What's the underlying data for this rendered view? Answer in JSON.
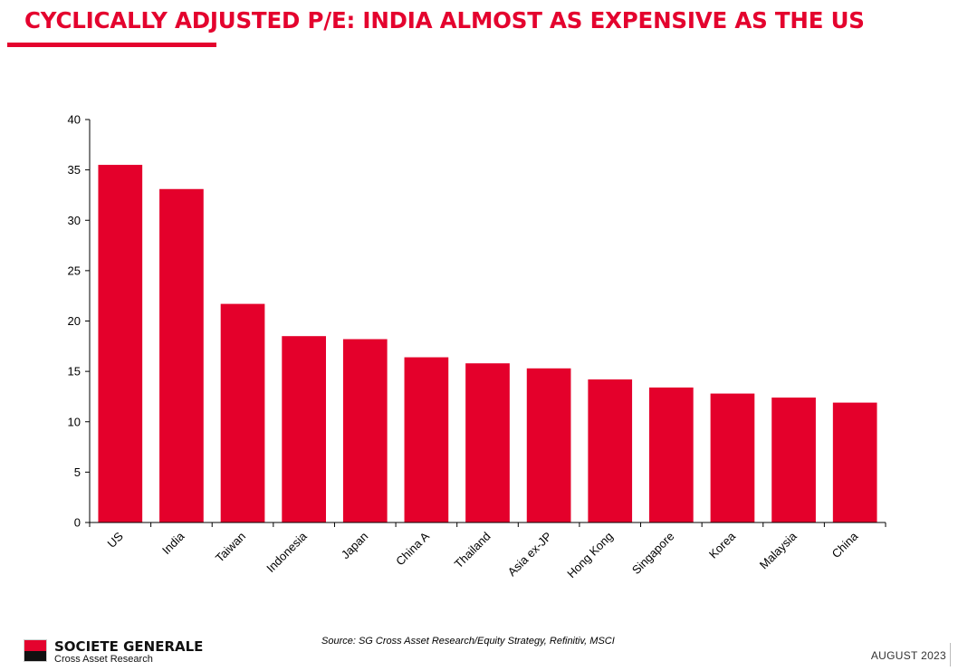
{
  "header": {
    "title": "CYCLICALLY ADJUSTED P/E: INDIA ALMOST AS EXPENSIVE AS THE US"
  },
  "colors": {
    "accent": "#e4032e",
    "bar": "#e4002b",
    "axis": "#000000"
  },
  "chart_data": {
    "type": "bar",
    "categories": [
      "US",
      "India",
      "Taiwan",
      "Indonesia",
      "Japan",
      "China A",
      "Thailand",
      "Asia ex-JP",
      "Hong Kong",
      "Singapore",
      "Korea",
      "Malaysia",
      "China"
    ],
    "values": [
      35.5,
      33.1,
      21.7,
      18.5,
      18.2,
      16.4,
      15.8,
      15.3,
      14.2,
      13.4,
      12.8,
      12.4,
      11.9
    ],
    "yticks": [
      "0",
      "5",
      "10",
      "15",
      "20",
      "25",
      "30",
      "35",
      "40"
    ],
    "ylim": [
      0,
      40
    ],
    "title": "",
    "xlabel": "",
    "ylabel": "",
    "grid": false,
    "legend": "none"
  },
  "footer": {
    "source": "Source: SG Cross Asset Research/Equity Strategy, Refinitiv, MSCI",
    "brand_name": "SOCIETE GENERALE",
    "brand_sub": "Cross Asset Research",
    "date": "AUGUST 2023"
  }
}
